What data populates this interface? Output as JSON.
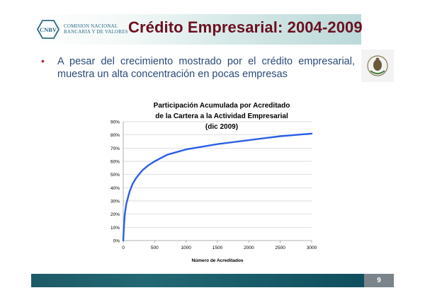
{
  "header": {
    "logo_line1": "COMISION NACIONAL",
    "logo_line2": "BANCARIA Y DE VALORES",
    "title": "Crédito Empresarial: 2004-2009"
  },
  "bullet": {
    "text": "A pesar del crecimiento mostrado por el crédito empresarial, muestra un alta concentración en pocas empresas"
  },
  "colors": {
    "title": "#6b1020",
    "bullet_text": "#2b4a78",
    "series_line": "#2b5fe6",
    "footer_bar": "#1d5a66"
  },
  "icons": [
    "cnbv-logo-icon",
    "mexico-seal-icon"
  ],
  "chart_data": {
    "type": "line",
    "title_lines": [
      "Participación Acumulada por Acreditado",
      "de la Cartera a la Actividad Empresarial",
      "(dic 2009)"
    ],
    "xlabel": "Número de Acreditados",
    "ylabel": "",
    "xlim": [
      0,
      3000
    ],
    "ylim": [
      0,
      90
    ],
    "x_ticks": [
      "0",
      "500",
      "1000",
      "1500",
      "2000",
      "2500",
      "3000"
    ],
    "y_ticks": [
      "0%",
      "10%",
      "20%",
      "30%",
      "40%",
      "50%",
      "60%",
      "70%",
      "80%",
      "90%"
    ],
    "grid": true,
    "legend": "none",
    "series": [
      {
        "x": [
          0,
          10,
          25,
          50,
          100,
          150,
          200,
          300,
          400,
          500,
          700,
          1000,
          1500,
          2000,
          2500,
          3000
        ],
        "values": [
          0,
          10,
          20,
          28,
          37,
          43,
          47,
          53,
          57,
          60,
          65,
          69,
          73,
          76,
          79,
          81
        ]
      }
    ]
  },
  "footer": {
    "page_number": "9"
  }
}
